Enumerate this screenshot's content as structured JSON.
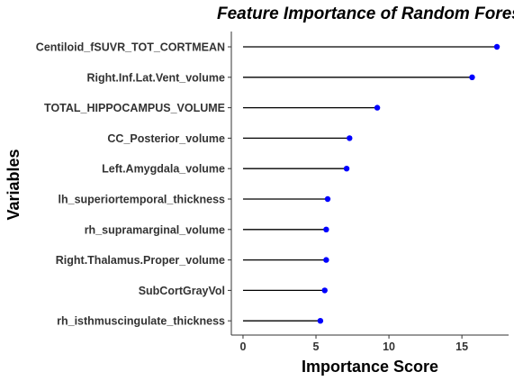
{
  "chart_data": {
    "type": "lollipop",
    "title": "Feature Importance of Random Forest",
    "xlabel": "Importance Score",
    "ylabel": "Variables",
    "xlim": [
      -0.8,
      18.2
    ],
    "xticks": [
      0,
      5,
      10,
      15
    ],
    "grid": false,
    "point_color": "#0000ff",
    "stem_color": "#000000",
    "categories": [
      "Centiloid_fSUVR_TOT_CORTMEAN",
      "Right.Inf.Lat.Vent_volume",
      "TOTAL_HIPPOCAMPUS_VOLUME",
      "CC_Posterior_volume",
      "Left.Amygdala_volume",
      "lh_superiortemporal_thickness",
      "rh_supramarginal_volume",
      "Right.Thalamus.Proper_volume",
      "SubCortGrayVol",
      "rh_isthmuscingulate_thickness"
    ],
    "values": [
      17.4,
      15.7,
      9.2,
      7.3,
      7.1,
      5.8,
      5.7,
      5.7,
      5.6,
      5.3
    ]
  }
}
